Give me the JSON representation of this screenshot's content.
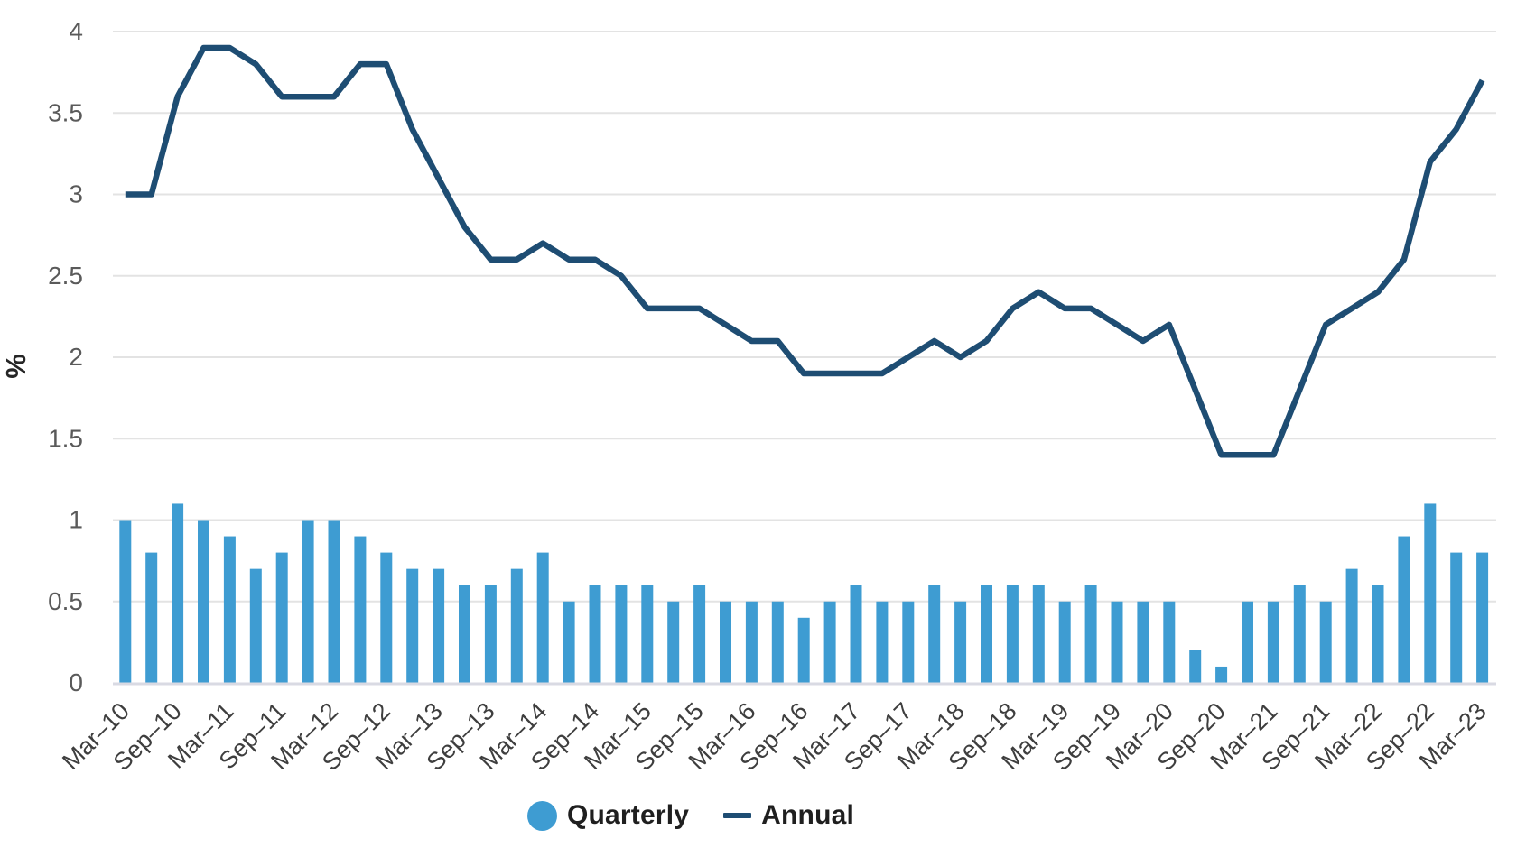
{
  "chart_data": {
    "type": "bar",
    "subtype": "combo-bar-line",
    "title": "",
    "ylabel": "%",
    "xlabel": "",
    "ylim": [
      0,
      4
    ],
    "yticks": [
      "0",
      "0.5",
      "1",
      "1.5",
      "2",
      "2.5",
      "3",
      "3.5",
      "4"
    ],
    "grid": true,
    "legend_position": "bottom",
    "x_label_every": 2,
    "categories": [
      "Mar–10",
      "Jun–10",
      "Sep–10",
      "Dec–10",
      "Mar–11",
      "Jun–11",
      "Sep–11",
      "Dec–11",
      "Mar–12",
      "Jun–12",
      "Sep–12",
      "Dec–12",
      "Mar–13",
      "Jun–13",
      "Sep–13",
      "Dec–13",
      "Mar–14",
      "Jun–14",
      "Sep–14",
      "Dec–14",
      "Mar–15",
      "Jun–15",
      "Sep–15",
      "Dec–15",
      "Mar–16",
      "Jun–16",
      "Sep–16",
      "Dec–16",
      "Mar–17",
      "Jun–17",
      "Sep–17",
      "Dec–17",
      "Mar–18",
      "Jun–18",
      "Sep–18",
      "Dec–18",
      "Mar–19",
      "Jun–19",
      "Sep–19",
      "Dec–19",
      "Mar–20",
      "Jun–20",
      "Sep–20",
      "Dec–20",
      "Mar–21",
      "Jun–21",
      "Sep–21",
      "Dec–21",
      "Mar–22",
      "Jun–22",
      "Sep–22",
      "Dec–22",
      "Mar–23"
    ],
    "series": [
      {
        "name": "Quarterly",
        "type": "bar",
        "color": "#3E9CD2",
        "values": [
          1.0,
          0.8,
          1.1,
          1.0,
          0.9,
          0.7,
          0.8,
          1.0,
          1.0,
          0.9,
          0.8,
          0.7,
          0.7,
          0.6,
          0.6,
          0.7,
          0.8,
          0.5,
          0.6,
          0.6,
          0.6,
          0.5,
          0.6,
          0.5,
          0.5,
          0.5,
          0.4,
          0.5,
          0.6,
          0.5,
          0.5,
          0.6,
          0.5,
          0.6,
          0.6,
          0.6,
          0.5,
          0.6,
          0.5,
          0.5,
          0.5,
          0.2,
          0.1,
          0.5,
          0.5,
          0.6,
          0.5,
          0.7,
          0.6,
          0.9,
          1.1,
          0.8,
          0.8
        ]
      },
      {
        "name": "Annual",
        "type": "line",
        "color": "#1E4D73",
        "values": [
          3.0,
          3.0,
          3.6,
          3.9,
          3.9,
          3.8,
          3.6,
          3.6,
          3.6,
          3.8,
          3.8,
          3.4,
          3.1,
          2.8,
          2.6,
          2.6,
          2.7,
          2.6,
          2.6,
          2.5,
          2.3,
          2.3,
          2.3,
          2.2,
          2.1,
          2.1,
          1.9,
          1.9,
          1.9,
          1.9,
          2.0,
          2.1,
          2.0,
          2.1,
          2.3,
          2.4,
          2.3,
          2.3,
          2.2,
          2.1,
          2.2,
          1.8,
          1.4,
          1.4,
          1.4,
          1.8,
          2.2,
          2.3,
          2.4,
          2.6,
          3.2,
          3.4,
          3.7
        ]
      }
    ]
  },
  "legend": {
    "quarterly_label": "Quarterly",
    "annual_label": "Annual"
  },
  "colors": {
    "bar": "#3E9CD2",
    "line": "#1E4D73",
    "gridline": "#E3E3E3",
    "axis_line": "#D9DAE3",
    "y_tick_text": "#5A5A5A",
    "x_tick_text": "#3E3E3E",
    "ylabel_text": "#262626",
    "legend_text": "#1F1F1F",
    "background": "#FFFFFF"
  }
}
